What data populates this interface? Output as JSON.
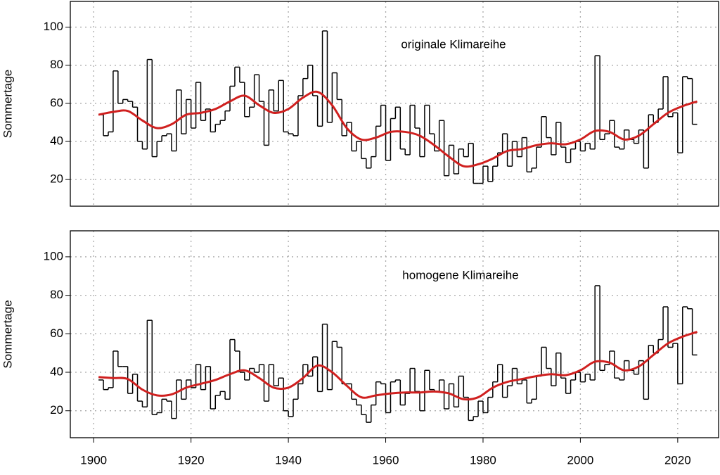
{
  "chart_data": [
    {
      "type": "line",
      "annotation": "originale Klimareihe",
      "ylabel": "Sommertage",
      "xlim": [
        1895.2,
        2028.4
      ],
      "ylim": [
        6,
        113.5
      ],
      "xticks": [
        1900,
        1920,
        1940,
        1960,
        1980,
        2000,
        2020
      ],
      "yticks": [
        20,
        40,
        60,
        80,
        100
      ],
      "show_xtick_labels": false,
      "grid": true,
      "series": [
        {
          "style": "step",
          "color": "#000000",
          "x": [
            1901,
            1902,
            1903,
            1904,
            1905,
            1906,
            1907,
            1908,
            1909,
            1910,
            1911,
            1912,
            1913,
            1914,
            1915,
            1916,
            1917,
            1918,
            1919,
            1920,
            1921,
            1922,
            1923,
            1924,
            1925,
            1926,
            1927,
            1928,
            1929,
            1930,
            1931,
            1932,
            1933,
            1934,
            1935,
            1936,
            1937,
            1938,
            1939,
            1940,
            1941,
            1942,
            1943,
            1944,
            1945,
            1946,
            1947,
            1948,
            1949,
            1950,
            1951,
            1952,
            1953,
            1954,
            1955,
            1956,
            1957,
            1958,
            1959,
            1960,
            1961,
            1962,
            1963,
            1964,
            1965,
            1966,
            1967,
            1968,
            1969,
            1970,
            1971,
            1972,
            1973,
            1974,
            1975,
            1976,
            1977,
            1978,
            1979,
            1980,
            1981,
            1982,
            1983,
            1984,
            1985,
            1986,
            1987,
            1988,
            1989,
            1990,
            1991,
            1992,
            1993,
            1994,
            1995,
            1996,
            1997,
            1998,
            1999,
            2000,
            2001,
            2002,
            2003,
            2004,
            2005,
            2006,
            2007,
            2008,
            2009,
            2010,
            2011,
            2012,
            2013,
            2014,
            2015,
            2016,
            2017,
            2018,
            2019,
            2020,
            2021,
            2022,
            2023
          ],
          "values": [
            54,
            43,
            45,
            77,
            60,
            62,
            61,
            58,
            40,
            36,
            83,
            32,
            40,
            43,
            44,
            35,
            67,
            44,
            62,
            47,
            71,
            51,
            57,
            45,
            49,
            51,
            56,
            69,
            79,
            71,
            53,
            58,
            75,
            61,
            38,
            67,
            56,
            72,
            45,
            44,
            43,
            64,
            73,
            80,
            64,
            48,
            98,
            50,
            76,
            62,
            43,
            50,
            35,
            40,
            31,
            26,
            32,
            48,
            59,
            30,
            52,
            58,
            36,
            33,
            59,
            47,
            32,
            59,
            44,
            35,
            51,
            22,
            38,
            23,
            36,
            32,
            39,
            18,
            18,
            27,
            19,
            27,
            34,
            44,
            27,
            40,
            32,
            42,
            24,
            26,
            37,
            53,
            42,
            33,
            50,
            37,
            29,
            36,
            40,
            35,
            39,
            36,
            85,
            41,
            44,
            51,
            37,
            36,
            46,
            41,
            39,
            46,
            26,
            54,
            50,
            57,
            74,
            53,
            55,
            34,
            74,
            73,
            49
          ]
        },
        {
          "style": "smooth",
          "color": "#d0201f",
          "x": [
            1901,
            1904,
            1907,
            1910,
            1913,
            1916,
            1919,
            1922,
            1925,
            1928,
            1931,
            1934,
            1937,
            1940,
            1943,
            1946,
            1949,
            1952,
            1955,
            1958,
            1961,
            1964,
            1967,
            1970,
            1973,
            1976,
            1979,
            1982,
            1985,
            1988,
            1991,
            1994,
            1997,
            2000,
            2003,
            2006,
            2009,
            2012,
            2015,
            2018,
            2021,
            2024
          ],
          "values": [
            54,
            55.5,
            56,
            51,
            47,
            49,
            54,
            55,
            57,
            61,
            64,
            59,
            55,
            57,
            63,
            66,
            59,
            47,
            41,
            42,
            45,
            45,
            43,
            38,
            32,
            27,
            28,
            31,
            35,
            36,
            38,
            39,
            38.5,
            41,
            45.5,
            45,
            41,
            43,
            49,
            55,
            58.5,
            61
          ]
        }
      ]
    },
    {
      "type": "line",
      "annotation": "homogene Klimareihe",
      "ylabel": "Sommertage",
      "xlim": [
        1895.2,
        2028.4
      ],
      "ylim": [
        6,
        113.5
      ],
      "xticks": [
        1900,
        1920,
        1940,
        1960,
        1980,
        2000,
        2020
      ],
      "yticks": [
        20,
        40,
        60,
        80,
        100
      ],
      "show_xtick_labels": true,
      "grid": true,
      "series": [
        {
          "style": "step",
          "color": "#000000",
          "x": [
            1901,
            1902,
            1903,
            1904,
            1905,
            1906,
            1907,
            1908,
            1909,
            1910,
            1911,
            1912,
            1913,
            1914,
            1915,
            1916,
            1917,
            1918,
            1919,
            1920,
            1921,
            1922,
            1923,
            1924,
            1925,
            1926,
            1927,
            1928,
            1929,
            1930,
            1931,
            1932,
            1933,
            1934,
            1935,
            1936,
            1937,
            1938,
            1939,
            1940,
            1941,
            1942,
            1943,
            1944,
            1945,
            1946,
            1947,
            1948,
            1949,
            1950,
            1951,
            1952,
            1953,
            1954,
            1955,
            1956,
            1957,
            1958,
            1959,
            1960,
            1961,
            1962,
            1963,
            1964,
            1965,
            1966,
            1967,
            1968,
            1969,
            1970,
            1971,
            1972,
            1973,
            1974,
            1975,
            1976,
            1977,
            1978,
            1979,
            1980,
            1981,
            1982,
            1983,
            1984,
            1985,
            1986,
            1987,
            1988,
            1989,
            1990,
            1991,
            1992,
            1993,
            1994,
            1995,
            1996,
            1997,
            1998,
            1999,
            2000,
            2001,
            2002,
            2003,
            2004,
            2005,
            2006,
            2007,
            2008,
            2009,
            2010,
            2011,
            2012,
            2013,
            2014,
            2015,
            2016,
            2017,
            2018,
            2019,
            2020,
            2021,
            2022,
            2023
          ],
          "values": [
            36,
            31,
            32,
            51,
            43,
            43,
            29,
            39,
            25,
            22,
            67,
            18,
            19,
            26,
            25,
            16,
            36,
            26,
            36,
            32,
            44,
            31,
            43,
            21,
            28,
            30,
            26,
            57,
            51,
            40,
            36,
            42,
            40,
            44,
            25,
            44,
            33,
            37,
            20,
            17,
            26,
            34,
            44,
            38,
            48,
            30,
            65,
            31,
            56,
            53,
            34,
            34,
            26,
            23,
            18,
            14,
            23,
            35,
            34,
            19,
            35,
            36,
            23,
            29,
            42,
            30,
            20,
            41,
            31,
            30,
            36,
            21,
            34,
            22,
            38,
            27,
            15,
            17,
            25,
            19,
            27,
            35,
            44,
            27,
            33,
            42,
            34,
            36,
            24,
            26,
            38,
            53,
            42,
            33,
            50,
            37,
            29,
            36,
            40,
            35,
            39,
            36,
            85,
            41,
            44,
            51,
            37,
            36,
            46,
            41,
            39,
            46,
            26,
            54,
            50,
            57,
            74,
            53,
            55,
            34,
            74,
            73,
            49
          ]
        },
        {
          "style": "smooth",
          "color": "#d0201f",
          "x": [
            1901,
            1904,
            1907,
            1910,
            1913,
            1916,
            1919,
            1922,
            1925,
            1928,
            1931,
            1934,
            1937,
            1940,
            1943,
            1946,
            1949,
            1952,
            1955,
            1958,
            1961,
            1964,
            1967,
            1970,
            1973,
            1976,
            1979,
            1982,
            1985,
            1988,
            1991,
            1994,
            1997,
            2000,
            2003,
            2006,
            2009,
            2012,
            2015,
            2018,
            2021,
            2024
          ],
          "values": [
            37.5,
            37,
            36.5,
            31,
            28,
            28.5,
            32,
            34,
            36,
            39,
            41,
            37,
            32,
            32,
            37,
            43.5,
            40,
            33,
            27,
            28,
            29,
            29.5,
            29.5,
            30,
            29,
            26,
            27,
            32,
            35,
            36.5,
            38,
            39,
            38.5,
            41,
            45.5,
            45,
            41,
            43,
            49,
            55,
            58.5,
            61
          ]
        }
      ]
    }
  ]
}
